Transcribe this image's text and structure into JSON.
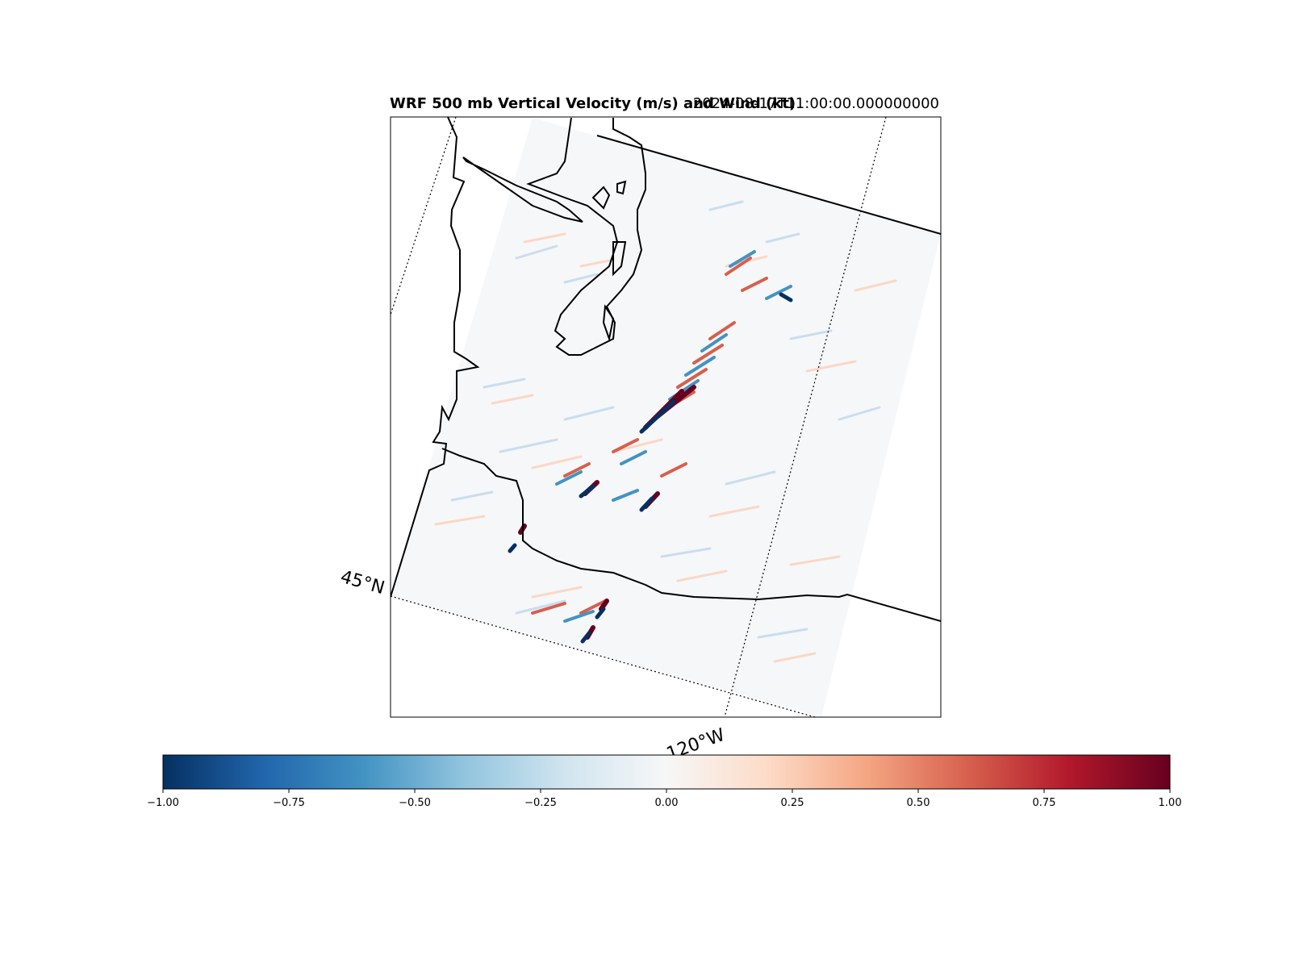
{
  "title": {
    "left": "WRF 500 mb Vertical Velocity (m/s) and Wind (kt)",
    "right": "2024-08-17T11:00:00.000000000"
  },
  "map": {
    "lat_label": "45°N",
    "lon_label": "120°W"
  },
  "colorbar": {
    "colormap": "RdBu_r",
    "colors": [
      "#053061",
      "#2166ac",
      "#4393c3",
      "#92c5de",
      "#d1e5f0",
      "#f7f7f7",
      "#fddbc7",
      "#f4a582",
      "#d6604d",
      "#b2182b",
      "#67001f"
    ],
    "vmin": -1.0,
    "vmax": 1.0,
    "ticks": [
      "−1.00",
      "−0.75",
      "−0.50",
      "−0.25",
      "0.00",
      "0.25",
      "0.50",
      "0.75",
      "1.00"
    ]
  }
}
